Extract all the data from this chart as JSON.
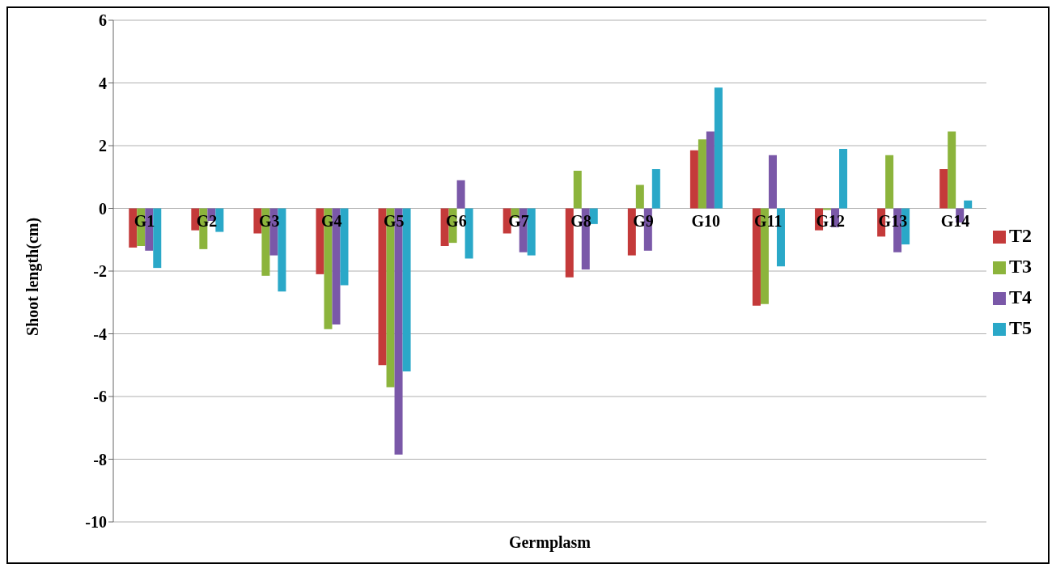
{
  "chart_data": {
    "type": "bar",
    "xlabel": "Germplasm",
    "ylabel": "Shoot length(cm)",
    "categories": [
      "G1",
      "G2",
      "G3",
      "G4",
      "G5",
      "G6",
      "G7",
      "G8",
      "G9",
      "G10",
      "G11",
      "G12",
      "G13",
      "G14"
    ],
    "series": [
      {
        "name": "T2",
        "color": "#c43a3a",
        "values": [
          -1.25,
          -0.7,
          -0.8,
          -2.1,
          -5.0,
          -1.2,
          -0.8,
          -2.2,
          -1.5,
          1.85,
          -3.1,
          -0.7,
          -0.9,
          1.25
        ]
      },
      {
        "name": "T3",
        "color": "#8cb43c",
        "values": [
          -1.2,
          -1.3,
          -2.15,
          -3.85,
          -5.7,
          -1.1,
          -0.3,
          1.2,
          0.75,
          2.2,
          -3.05,
          -0.05,
          1.7,
          2.45
        ]
      },
      {
        "name": "T4",
        "color": "#7a58a8",
        "values": [
          -1.35,
          -0.4,
          -1.5,
          -3.7,
          -7.85,
          0.9,
          -1.4,
          -1.95,
          -1.35,
          2.45,
          1.7,
          -0.6,
          -1.4,
          -0.45
        ]
      },
      {
        "name": "T5",
        "color": "#2aa8c8",
        "values": [
          -1.9,
          -0.75,
          -2.65,
          -2.45,
          -5.2,
          -1.6,
          -1.5,
          -0.5,
          1.25,
          3.85,
          -1.85,
          1.9,
          -1.15,
          0.25
        ]
      }
    ],
    "ylim": [
      -10,
      6
    ],
    "yticks": [
      -10,
      -8,
      -6,
      -4,
      -2,
      0,
      2,
      4,
      6
    ],
    "grid": "y",
    "legend": "right"
  }
}
